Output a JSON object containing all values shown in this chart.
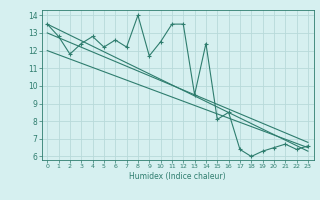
{
  "xlabel": "Humidex (Indice chaleur)",
  "ylabel": "",
  "bg_color": "#d6f0f0",
  "grid_color": "#b8dada",
  "line_color": "#2e7d6e",
  "xlim": [
    -0.5,
    23.5
  ],
  "ylim": [
    5.8,
    14.3
  ],
  "xticks": [
    0,
    1,
    2,
    3,
    4,
    5,
    6,
    7,
    8,
    9,
    10,
    11,
    12,
    13,
    14,
    15,
    16,
    17,
    18,
    19,
    20,
    21,
    22,
    23
  ],
  "yticks": [
    6,
    7,
    8,
    9,
    10,
    11,
    12,
    13,
    14
  ],
  "main_x": [
    0,
    1,
    2,
    3,
    4,
    5,
    6,
    7,
    8,
    9,
    10,
    11,
    12,
    13,
    14,
    15,
    16,
    17,
    18,
    19,
    20,
    21,
    22,
    23
  ],
  "main_y": [
    13.5,
    12.8,
    11.8,
    12.4,
    12.8,
    12.2,
    12.6,
    12.2,
    14.0,
    11.7,
    12.5,
    13.5,
    13.5,
    9.5,
    12.4,
    8.1,
    8.5,
    6.4,
    6.0,
    6.3,
    6.5,
    6.7,
    6.4,
    6.6
  ],
  "trend1_x": [
    0,
    23
  ],
  "trend1_y": [
    13.5,
    6.3
  ],
  "trend2_x": [
    0,
    23
  ],
  "trend2_y": [
    12.0,
    6.5
  ],
  "trend3_x": [
    0,
    23
  ],
  "trend3_y": [
    13.0,
    6.8
  ]
}
